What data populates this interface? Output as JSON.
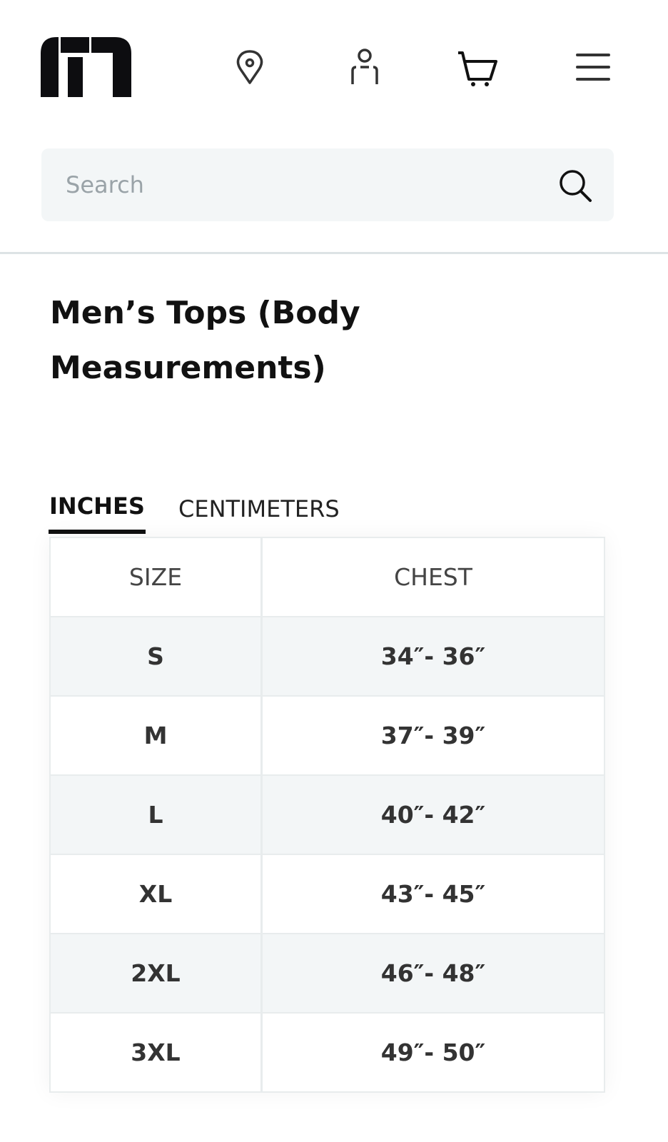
{
  "header": {
    "logo": "TravisMathew logo",
    "icons": [
      "location-icon",
      "account-icon",
      "cart-icon",
      "menu-icon"
    ]
  },
  "search": {
    "placeholder": "Search",
    "value": ""
  },
  "page": {
    "title": "Men’s Tops (Body Measurements)"
  },
  "tabs": [
    {
      "label": "INCHES",
      "active": true
    },
    {
      "label": "CENTIMETERS",
      "active": false
    }
  ],
  "table": {
    "headers": [
      "SIZE",
      "CHEST"
    ],
    "rows": [
      [
        "S",
        "34″- 36″"
      ],
      [
        "M",
        "37″- 39″"
      ],
      [
        "L",
        "40″- 42″"
      ],
      [
        "XL",
        "43″- 45″"
      ],
      [
        "2XL",
        "46″- 48″"
      ],
      [
        "3XL",
        "49″- 50″"
      ]
    ]
  }
}
